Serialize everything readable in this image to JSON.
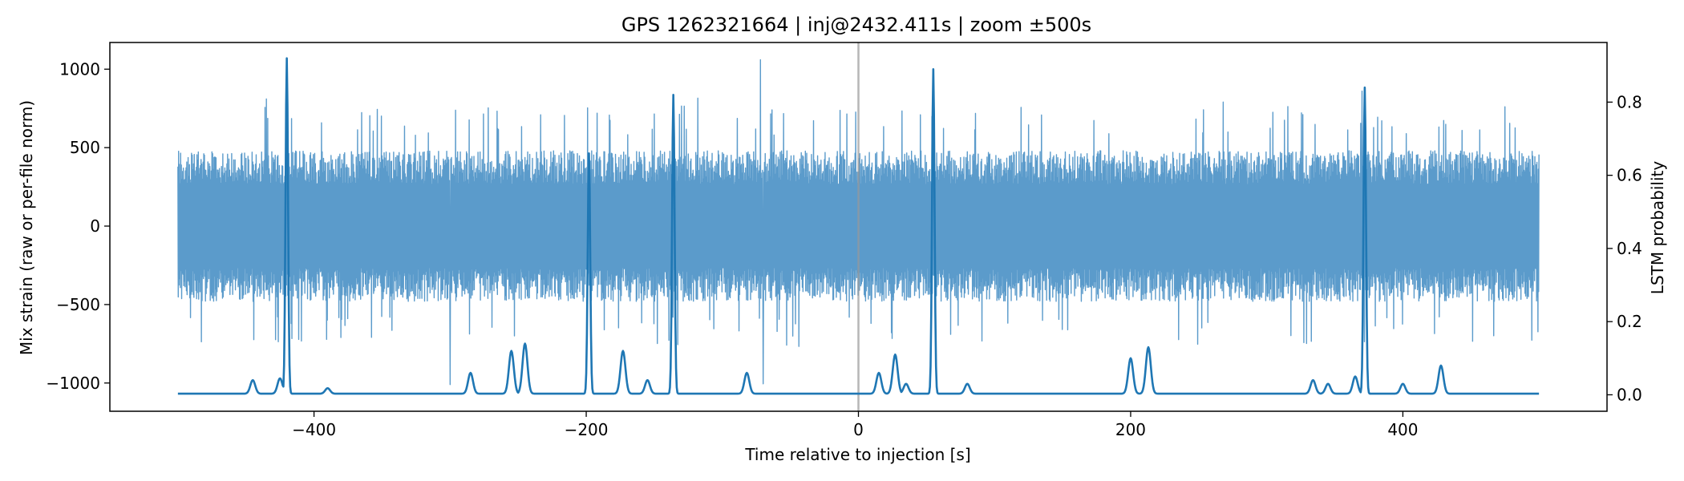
{
  "chart_data": {
    "type": "line",
    "title": "GPS 1262321664 | inj@2432.411s | zoom ±500s",
    "xlabel": "Time relative to injection [s]",
    "ylabel_left": "Mix strain (raw or per-file norm)",
    "ylabel_right": "LSTM probability",
    "xlim": [
      -550,
      550
    ],
    "ylim_left": [
      -1180,
      1170
    ],
    "ylim_right": [
      -0.045,
      0.963
    ],
    "x_ticks": [
      -400,
      -200,
      0,
      200,
      400
    ],
    "x_tick_labels": [
      "−400",
      "−200",
      "0",
      "200",
      "400"
    ],
    "y_left_ticks": [
      -1000,
      -500,
      0,
      500,
      1000
    ],
    "y_left_tick_labels": [
      "−1000",
      "−500",
      "0",
      "500",
      "1000"
    ],
    "y_right_ticks": [
      0.0,
      0.2,
      0.4,
      0.6,
      0.8
    ],
    "y_right_tick_labels": [
      "0.0",
      "0.2",
      "0.4",
      "0.6",
      "0.8"
    ],
    "injection_marker_x": 0,
    "grid": false,
    "colors": {
      "strain": "#5b9bcb",
      "probability": "#1f77b4",
      "marker": "#999999"
    },
    "series": [
      {
        "axis": "left",
        "x_range": [
          -500,
          500
        ],
        "typical_amplitude": 480,
        "spikes": [
          {
            "x": -420,
            "y": 1060
          },
          {
            "x": -72,
            "y": 1060
          },
          {
            "x": -300,
            "y": -1010
          },
          {
            "x": -70,
            "y": -1005
          },
          {
            "x": 55,
            "y": 980
          },
          {
            "x": 370,
            "y": 860
          },
          {
            "x": -435,
            "y": 810
          },
          {
            "x": -118,
            "y": 815
          },
          {
            "x": 268,
            "y": 790
          },
          {
            "x": 475,
            "y": 760
          }
        ]
      },
      {
        "axis": "right",
        "baseline": 0.003,
        "peaks": [
          {
            "x": -445,
            "y": 0.04
          },
          {
            "x": -425,
            "y": 0.045
          },
          {
            "x": -420,
            "y": 0.92
          },
          {
            "x": -390,
            "y": 0.018
          },
          {
            "x": -285,
            "y": 0.06
          },
          {
            "x": -255,
            "y": 0.12
          },
          {
            "x": -245,
            "y": 0.14
          },
          {
            "x": -198,
            "y": 0.66
          },
          {
            "x": -173,
            "y": 0.12
          },
          {
            "x": -155,
            "y": 0.04
          },
          {
            "x": -136,
            "y": 0.82
          },
          {
            "x": -82,
            "y": 0.06
          },
          {
            "x": 15,
            "y": 0.06
          },
          {
            "x": 27,
            "y": 0.11
          },
          {
            "x": 35,
            "y": 0.03
          },
          {
            "x": 55,
            "y": 0.89
          },
          {
            "x": 80,
            "y": 0.03
          },
          {
            "x": 200,
            "y": 0.1
          },
          {
            "x": 213,
            "y": 0.13
          },
          {
            "x": 334,
            "y": 0.04
          },
          {
            "x": 345,
            "y": 0.03
          },
          {
            "x": 365,
            "y": 0.05
          },
          {
            "x": 372,
            "y": 0.84
          },
          {
            "x": 400,
            "y": 0.03
          },
          {
            "x": 428,
            "y": 0.08
          }
        ]
      }
    ]
  }
}
